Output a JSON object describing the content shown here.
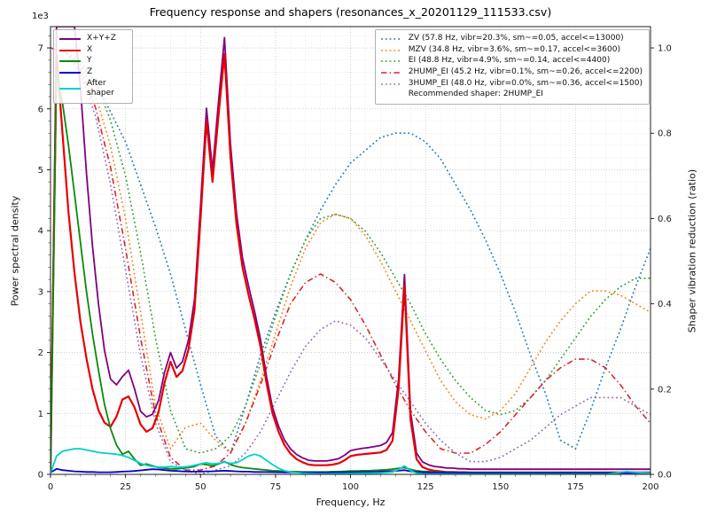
{
  "chart_data": {
    "type": "line",
    "title": "Frequency response and shapers (resonances_x_20201129_111533.csv)",
    "xlabel": "Frequency, Hz",
    "ylabel": "Power spectral density",
    "ylabel_right": "Shaper vibration reduction (ratio)",
    "offset_text": "1e3",
    "xlim": [
      0,
      200
    ],
    "ylim_left": [
      0,
      7350
    ],
    "ylim_right": [
      0,
      1.05
    ],
    "grid": "both",
    "x_ticks": [
      0,
      25,
      50,
      75,
      100,
      125,
      150,
      175,
      200
    ],
    "y_ticks_left": [
      0,
      1,
      2,
      3,
      4,
      5,
      6,
      7
    ],
    "y_ticks_right": [
      0.0,
      0.2,
      0.4,
      0.6,
      0.8,
      1.0
    ],
    "recommended": "Recommended shaper: 2HUMP_EI",
    "psd_x": [
      0,
      2,
      4,
      6,
      8,
      10,
      12,
      14,
      16,
      18,
      20,
      22,
      24,
      26,
      28,
      30,
      32,
      34,
      36,
      38,
      40,
      42,
      44,
      46,
      48,
      50,
      52,
      54,
      56,
      58,
      60,
      62,
      64,
      66,
      68,
      70,
      72,
      74,
      76,
      78,
      80,
      82,
      84,
      86,
      88,
      90,
      92,
      94,
      96,
      98,
      100,
      102,
      104,
      106,
      108,
      110,
      112,
      114,
      116,
      118,
      120,
      122,
      124,
      126,
      128,
      130,
      132,
      134,
      136,
      138,
      140,
      142,
      144,
      146,
      148,
      150,
      152,
      154,
      156,
      158,
      160,
      162,
      164,
      166,
      168,
      170,
      172,
      174,
      176,
      178,
      180,
      182,
      184,
      186,
      188,
      190,
      192,
      194,
      196,
      198,
      200
    ],
    "psd_series": [
      {
        "name": "X+Y+Z",
        "color": "#800080",
        "style": "solid",
        "width": 1.8,
        "values": [
          120,
          13590,
          11770,
          9760,
          7950,
          6345,
          4940,
          3740,
          2785,
          2035,
          1565,
          1470,
          1605,
          1710,
          1405,
          1035,
          945,
          985,
          1210,
          1670,
          2000,
          1745,
          1850,
          2205,
          2875,
          4415,
          6010,
          4990,
          6125,
          7170,
          5415,
          4280,
          3555,
          3095,
          2680,
          2220,
          1608,
          1096,
          790,
          564,
          418,
          327,
          272,
          231,
          221,
          220,
          220,
          236,
          257,
          313,
          390,
          411,
          428,
          440,
          457,
          475,
          523,
          687,
          1560,
          3280,
          1030,
          350,
          205,
          157,
          130,
          120,
          103,
          103,
          92,
          92,
          85,
          85,
          85,
          85,
          85,
          85,
          85,
          85,
          85,
          85,
          85,
          85,
          85,
          85,
          85,
          85,
          85,
          85,
          85,
          85,
          85,
          85,
          85,
          85,
          85,
          85,
          85,
          85,
          85,
          85,
          85
        ]
      },
      {
        "name": "X",
        "color": "#e60000",
        "style": "solid",
        "width": 2.2,
        "values": [
          50,
          6900,
          5600,
          4300,
          3300,
          2500,
          1900,
          1400,
          1050,
          850,
          780,
          950,
          1230,
          1280,
          1100,
          820,
          700,
          760,
          1020,
          1500,
          1850,
          1600,
          1700,
          2050,
          2700,
          4200,
          5800,
          4800,
          5900,
          6900,
          5200,
          4100,
          3400,
          2950,
          2550,
          2100,
          1500,
          1000,
          700,
          480,
          340,
          250,
          200,
          160,
          150,
          150,
          150,
          160,
          180,
          230,
          300,
          320,
          330,
          340,
          350,
          360,
          400,
          550,
          1400,
          3100,
          900,
          250,
          120,
          80,
          60,
          50,
          40,
          40,
          35,
          35,
          30,
          30,
          30,
          30,
          30,
          30,
          30,
          30,
          30,
          30,
          30,
          30,
          30,
          30,
          30,
          30,
          30,
          30,
          30,
          30,
          30,
          30,
          30,
          30,
          30,
          30,
          30,
          30,
          30,
          30,
          30
        ]
      },
      {
        "name": "Y",
        "color": "#0a8a0a",
        "style": "solid",
        "width": 1.8,
        "values": [
          40,
          6600,
          6100,
          5400,
          4600,
          3800,
          3000,
          2300,
          1700,
          1150,
          750,
          480,
          330,
          380,
          250,
          150,
          170,
          140,
          110,
          100,
          90,
          90,
          100,
          110,
          130,
          170,
          160,
          140,
          170,
          210,
          160,
          130,
          110,
          100,
          90,
          80,
          70,
          60,
          55,
          50,
          45,
          45,
          40,
          40,
          40,
          40,
          40,
          45,
          45,
          50,
          55,
          55,
          60,
          60,
          65,
          70,
          75,
          85,
          100,
          110,
          80,
          60,
          50,
          45,
          40,
          40,
          35,
          35,
          30,
          30,
          30,
          30,
          30,
          30,
          30,
          30,
          30,
          30,
          30,
          30,
          30,
          30,
          30,
          30,
          30,
          30,
          30,
          30,
          30,
          30,
          30,
          30,
          30,
          30,
          30,
          30,
          30,
          30,
          30,
          30,
          30
        ]
      },
      {
        "name": "Z",
        "color": "#0000cc",
        "style": "solid",
        "width": 1.8,
        "values": [
          30,
          90,
          70,
          60,
          50,
          45,
          40,
          40,
          35,
          35,
          35,
          40,
          45,
          50,
          55,
          65,
          75,
          85,
          80,
          70,
          60,
          55,
          50,
          45,
          45,
          45,
          50,
          50,
          55,
          60,
          55,
          50,
          45,
          45,
          40,
          40,
          38,
          36,
          35,
          34,
          33,
          32,
          32,
          31,
          31,
          30,
          30,
          31,
          32,
          33,
          35,
          36,
          38,
          40,
          42,
          45,
          48,
          52,
          60,
          70,
          50,
          40,
          35,
          32,
          30,
          30,
          28,
          28,
          27,
          27,
          25,
          25,
          25,
          25,
          25,
          25,
          25,
          25,
          25,
          25,
          25,
          25,
          25,
          25,
          25,
          25,
          25,
          25,
          25,
          25,
          25,
          25,
          25,
          25,
          25,
          25,
          25,
          25,
          25,
          25,
          25
        ]
      },
      {
        "name": "After shaper",
        "color": "#00cfcf",
        "style": "solid",
        "width": 1.8,
        "values": [
          20,
          300,
          380,
          400,
          420,
          420,
          400,
          380,
          360,
          350,
          340,
          330,
          310,
          280,
          230,
          180,
          150,
          130,
          120,
          120,
          130,
          120,
          120,
          130,
          150,
          170,
          190,
          170,
          180,
          200,
          180,
          190,
          240,
          300,
          330,
          300,
          230,
          160,
          100,
          60,
          40,
          30,
          20,
          15,
          10,
          10,
          10,
          10,
          12,
          13,
          15,
          16,
          18,
          20,
          22,
          25,
          30,
          40,
          80,
          140,
          60,
          20,
          10,
          8,
          6,
          5,
          5,
          5,
          5,
          5,
          5,
          5,
          5,
          5,
          5,
          5,
          5,
          5,
          5,
          5,
          5,
          5,
          5,
          5,
          5,
          5,
          5,
          5,
          5,
          5,
          5,
          5,
          5,
          5,
          20,
          35,
          45,
          40,
          30,
          25,
          20
        ]
      }
    ],
    "shaper_x": [
      0,
      5,
      10,
      15,
      20,
      25,
      30,
      35,
      40,
      45,
      50,
      55,
      60,
      65,
      70,
      75,
      80,
      85,
      90,
      95,
      100,
      105,
      110,
      115,
      120,
      125,
      130,
      135,
      140,
      145,
      150,
      155,
      160,
      165,
      170,
      175,
      180,
      185,
      190,
      195,
      200
    ],
    "shaper_series": [
      {
        "name": "ZV",
        "label": "ZV (57.8 Hz, vibr=20.3%, sm~=0.05, accel<=13000)",
        "color": "#1f77b4",
        "style": "dotted",
        "values": [
          1.0,
          0.99,
          0.96,
          0.92,
          0.85,
          0.78,
          0.68,
          0.58,
          0.47,
          0.34,
          0.21,
          0.09,
          0.05,
          0.16,
          0.28,
          0.38,
          0.47,
          0.55,
          0.62,
          0.68,
          0.73,
          0.76,
          0.79,
          0.8,
          0.8,
          0.78,
          0.74,
          0.68,
          0.62,
          0.55,
          0.47,
          0.38,
          0.28,
          0.19,
          0.08,
          0.06,
          0.15,
          0.25,
          0.34,
          0.44,
          0.53
        ]
      },
      {
        "name": "MZV",
        "label": "MZV (34.8 Hz, vibr=3.6%, sm~=0.17, accel<=3600)",
        "color": "#ff7f0e",
        "style": "dotted",
        "values": [
          1.0,
          0.99,
          0.96,
          0.89,
          0.77,
          0.6,
          0.38,
          0.16,
          0.06,
          0.11,
          0.12,
          0.08,
          0.05,
          0.12,
          0.22,
          0.33,
          0.44,
          0.53,
          0.59,
          0.61,
          0.6,
          0.56,
          0.5,
          0.43,
          0.36,
          0.29,
          0.22,
          0.17,
          0.14,
          0.13,
          0.15,
          0.19,
          0.25,
          0.31,
          0.36,
          0.4,
          0.43,
          0.43,
          0.42,
          0.4,
          0.38
        ]
      },
      {
        "name": "EI",
        "label": "EI (48.8 Hz, vibr=4.9%, sm~=0.14, accel<=4400)",
        "color": "#2ca02c",
        "style": "dotted",
        "values": [
          1.0,
          0.99,
          0.97,
          0.92,
          0.83,
          0.7,
          0.52,
          0.32,
          0.15,
          0.06,
          0.05,
          0.06,
          0.09,
          0.16,
          0.26,
          0.37,
          0.47,
          0.55,
          0.6,
          0.61,
          0.6,
          0.57,
          0.52,
          0.46,
          0.4,
          0.33,
          0.27,
          0.22,
          0.18,
          0.15,
          0.14,
          0.15,
          0.18,
          0.22,
          0.27,
          0.32,
          0.37,
          0.41,
          0.44,
          0.46,
          0.46
        ]
      },
      {
        "name": "2HUMP_EI",
        "label": "2HUMP_EI (45.2 Hz, vibr=0.1%, sm~=0.26, accel<=2200)",
        "color": "#d62728",
        "style": "dashdot",
        "values": [
          1.0,
          0.99,
          0.95,
          0.86,
          0.72,
          0.53,
          0.32,
          0.14,
          0.04,
          0.01,
          0.01,
          0.02,
          0.05,
          0.12,
          0.21,
          0.31,
          0.4,
          0.45,
          0.47,
          0.45,
          0.41,
          0.35,
          0.28,
          0.21,
          0.15,
          0.1,
          0.06,
          0.05,
          0.05,
          0.07,
          0.1,
          0.14,
          0.18,
          0.22,
          0.25,
          0.27,
          0.27,
          0.25,
          0.21,
          0.16,
          0.12
        ]
      },
      {
        "name": "3HUMP_EI",
        "label": "3HUMP_EI (48.0 Hz, vibr=0.0%, sm~=0.36, accel<=1500)",
        "color": "#9467bd",
        "style": "dotted",
        "values": [
          1.0,
          0.99,
          0.94,
          0.84,
          0.68,
          0.48,
          0.28,
          0.12,
          0.03,
          0.01,
          0.0,
          0.01,
          0.02,
          0.05,
          0.1,
          0.17,
          0.24,
          0.3,
          0.34,
          0.36,
          0.35,
          0.32,
          0.27,
          0.22,
          0.17,
          0.12,
          0.08,
          0.05,
          0.03,
          0.03,
          0.04,
          0.06,
          0.08,
          0.11,
          0.14,
          0.16,
          0.18,
          0.18,
          0.18,
          0.16,
          0.14
        ]
      }
    ]
  }
}
